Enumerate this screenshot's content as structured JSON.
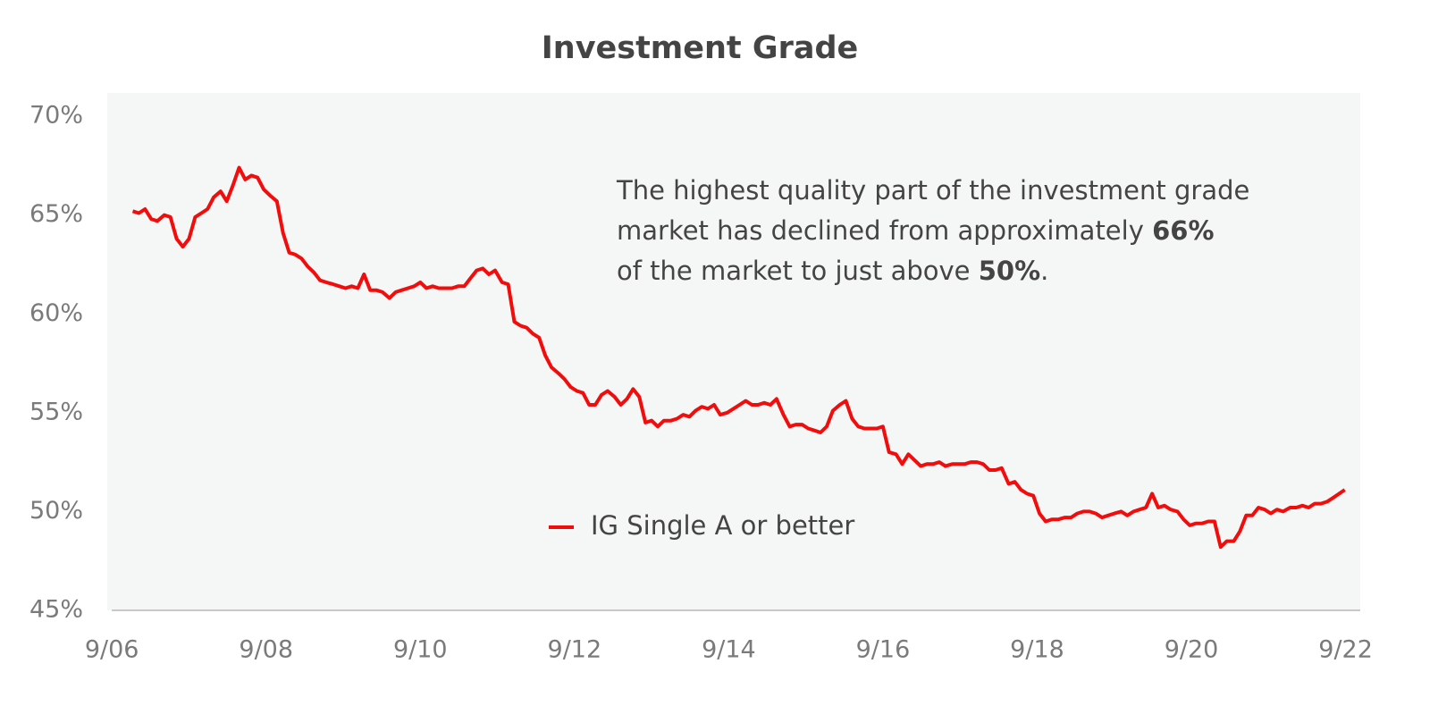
{
  "chart_data": {
    "type": "line",
    "title": "Investment Grade",
    "annotation": {
      "lines": [
        [
          "The highest quality part of the investment grade"
        ],
        [
          "market has declined from approximately ",
          "66%"
        ],
        [
          "of the market to just above ",
          "50%",
          "."
        ]
      ]
    },
    "xlim": [
      2006.61,
      2022.86
    ],
    "ylim": [
      45,
      71.18
    ],
    "xticks": [
      {
        "value": 2006.67,
        "label": "9/06"
      },
      {
        "value": 2008.67,
        "label": "9/08"
      },
      {
        "value": 2010.67,
        "label": "9/10"
      },
      {
        "value": 2012.67,
        "label": "9/12"
      },
      {
        "value": 2014.67,
        "label": "9/14"
      },
      {
        "value": 2016.67,
        "label": "9/16"
      },
      {
        "value": 2018.67,
        "label": "9/18"
      },
      {
        "value": 2020.67,
        "label": "9/20"
      },
      {
        "value": 2022.67,
        "label": "9/22"
      }
    ],
    "yticks": [
      {
        "value": 45,
        "label": "45%"
      },
      {
        "value": 50,
        "label": "50%"
      },
      {
        "value": 55,
        "label": "55%"
      },
      {
        "value": 60,
        "label": "60%"
      },
      {
        "value": 65,
        "label": "65%"
      },
      {
        "value": 70,
        "label": "70%"
      }
    ],
    "grid": false,
    "legend": "lower center",
    "x": [
      2006.94,
      2007.02,
      2007.1,
      2007.18,
      2007.26,
      2007.35,
      2007.43,
      2007.51,
      2007.59,
      2007.67,
      2007.75,
      2007.83,
      2007.91,
      2007.99,
      2008.08,
      2008.16,
      2008.24,
      2008.32,
      2008.4,
      2008.48,
      2008.56,
      2008.64,
      2008.72,
      2008.81,
      2008.89,
      2008.97,
      2009.05,
      2009.13,
      2009.21,
      2009.29,
      2009.37,
      2009.45,
      2009.54,
      2009.62,
      2009.7,
      2009.78,
      2009.86,
      2009.94,
      2010.02,
      2010.1,
      2010.18,
      2010.27,
      2010.35,
      2010.43,
      2010.51,
      2010.59,
      2010.67,
      2010.75,
      2010.83,
      2010.91,
      2011.0,
      2011.08,
      2011.16,
      2011.24,
      2011.32,
      2011.4,
      2011.48,
      2011.56,
      2011.64,
      2011.73,
      2011.81,
      2011.89,
      2011.97,
      2012.05,
      2012.13,
      2012.21,
      2012.29,
      2012.37,
      2012.46,
      2012.54,
      2012.62,
      2012.7,
      2012.78,
      2012.86,
      2012.94,
      2013.02,
      2013.1,
      2013.19,
      2013.27,
      2013.35,
      2013.43,
      2013.51,
      2013.59,
      2013.67,
      2013.75,
      2013.83,
      2013.92,
      2014.0,
      2014.08,
      2014.16,
      2014.24,
      2014.32,
      2014.4,
      2014.48,
      2014.56,
      2014.65,
      2014.73,
      2014.81,
      2014.89,
      2014.97,
      2015.05,
      2015.13,
      2015.21,
      2015.29,
      2015.38,
      2015.46,
      2015.54,
      2015.62,
      2015.7,
      2015.78,
      2015.86,
      2015.94,
      2016.02,
      2016.11,
      2016.19,
      2016.27,
      2016.35,
      2016.43,
      2016.51,
      2016.59,
      2016.67,
      2016.75,
      2016.84,
      2016.92,
      2017.0,
      2017.08,
      2017.16,
      2017.24,
      2017.32,
      2017.4,
      2017.48,
      2017.57,
      2017.65,
      2017.73,
      2017.81,
      2017.89,
      2017.97,
      2018.05,
      2018.13,
      2018.21,
      2018.3,
      2018.38,
      2018.46,
      2018.54,
      2018.62,
      2018.7,
      2018.78,
      2018.86,
      2018.94,
      2019.03,
      2019.11,
      2019.19,
      2019.27,
      2019.35,
      2019.43,
      2019.51,
      2019.59,
      2019.67,
      2019.76,
      2019.84,
      2019.92,
      2020.0,
      2020.08,
      2020.16,
      2020.24,
      2020.32,
      2020.4,
      2020.49,
      2020.57,
      2020.65,
      2020.73,
      2020.81,
      2020.89,
      2020.97,
      2021.05,
      2021.13,
      2021.22,
      2021.3,
      2021.38,
      2021.46,
      2021.54,
      2021.62,
      2021.7,
      2021.78,
      2021.86,
      2021.95,
      2022.03,
      2022.11,
      2022.19,
      2022.27,
      2022.35,
      2022.43,
      2022.51,
      2022.66
    ],
    "series": [
      {
        "name": "IG Single A or better",
        "color": "#f20d0d",
        "values": [
          65.2,
          65.1,
          65.3,
          64.8,
          64.7,
          65.0,
          64.9,
          63.8,
          63.4,
          63.8,
          64.9,
          65.1,
          65.3,
          65.9,
          66.2,
          65.7,
          66.5,
          67.4,
          66.8,
          67.0,
          66.9,
          66.3,
          66.0,
          65.7,
          64.1,
          63.1,
          63.0,
          62.8,
          62.4,
          62.1,
          61.7,
          61.6,
          61.5,
          61.4,
          61.3,
          61.4,
          61.3,
          62.0,
          61.2,
          61.2,
          61.1,
          60.8,
          61.1,
          61.2,
          61.3,
          61.4,
          61.6,
          61.3,
          61.4,
          61.3,
          61.3,
          61.3,
          61.4,
          61.4,
          61.8,
          62.2,
          62.3,
          62.0,
          62.2,
          61.6,
          61.5,
          59.6,
          59.4,
          59.3,
          59.0,
          58.8,
          57.9,
          57.3,
          57.0,
          56.7,
          56.3,
          56.1,
          56.0,
          55.4,
          55.4,
          55.9,
          56.1,
          55.8,
          55.4,
          55.7,
          56.2,
          55.8,
          54.5,
          54.6,
          54.3,
          54.6,
          54.6,
          54.7,
          54.9,
          54.8,
          55.1,
          55.3,
          55.2,
          55.4,
          54.9,
          55.0,
          55.2,
          55.4,
          55.6,
          55.4,
          55.4,
          55.5,
          55.4,
          55.7,
          54.9,
          54.3,
          54.4,
          54.4,
          54.2,
          54.1,
          54.0,
          54.3,
          55.1,
          55.4,
          55.6,
          54.7,
          54.3,
          54.2,
          54.2,
          54.2,
          54.3,
          53.0,
          52.9,
          52.4,
          52.9,
          52.6,
          52.3,
          52.4,
          52.4,
          52.5,
          52.3,
          52.4,
          52.4,
          52.4,
          52.5,
          52.5,
          52.4,
          52.1,
          52.1,
          52.2,
          51.4,
          51.5,
          51.1,
          50.9,
          50.8,
          49.9,
          49.5,
          49.6,
          49.6,
          49.7,
          49.7,
          49.9,
          50.0,
          50.0,
          49.9,
          49.7,
          49.8,
          49.9,
          50.0,
          49.8,
          50.0,
          50.1,
          50.2,
          50.9,
          50.2,
          50.3,
          50.1,
          50.0,
          49.6,
          49.3,
          49.4,
          49.4,
          49.5,
          49.5,
          48.2,
          48.5,
          48.5,
          49.0,
          49.8,
          49.8,
          50.2,
          50.1,
          49.9,
          50.1,
          50.0,
          50.2,
          50.2,
          50.3,
          50.2,
          50.4,
          50.4,
          50.5,
          50.7,
          51.1
        ]
      }
    ]
  }
}
